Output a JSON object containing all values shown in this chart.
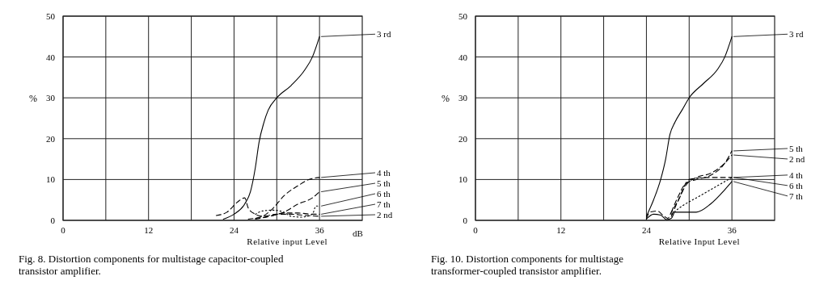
{
  "chart_data": [
    {
      "type": "line",
      "title": "Fig. 8. Distortion components for multistage capacitor-coupled transistor amplifier.",
      "xlabel": "Relative input Level",
      "ylabel": "%",
      "annotations": [
        "dB"
      ],
      "xlim": [
        0,
        42
      ],
      "xticks": [
        0,
        {
          "value": 6,
          "label": null
        },
        12,
        {
          "value": 18,
          "label": null
        },
        24,
        {
          "value": 30,
          "label": null
        },
        36
      ],
      "ylim": [
        0,
        50
      ],
      "yticks": [
        0,
        10,
        20,
        30,
        40,
        50
      ],
      "grid": true,
      "marker": "none",
      "series": [
        {
          "name": "3 rd",
          "color": "#000000",
          "line_style": "solid",
          "x": [
            22.5,
            24,
            25.5,
            26.3,
            27,
            27.5,
            28.2,
            28.8,
            30,
            32,
            34,
            35,
            36
          ],
          "values": [
            0.3,
            1.5,
            4,
            7,
            13,
            19,
            24,
            27,
            30,
            33,
            37,
            40,
            45
          ]
        },
        {
          "name": "2 nd",
          "color": "#000000",
          "line_style": "dashed",
          "x": [
            21.5,
            23,
            24.5,
            25.5,
            26,
            27,
            28,
            30,
            32,
            34,
            36
          ],
          "values": [
            1.2,
            2,
            4.5,
            5.5,
            3,
            1.5,
            1,
            1.5,
            1.5,
            1.2,
            1
          ]
        },
        {
          "name": "4 th",
          "color": "#000000",
          "line_style": "dashed",
          "x": [
            26,
            28,
            29.5,
            31,
            33,
            34.5,
            36
          ],
          "values": [
            0.3,
            1,
            3,
            6,
            8.5,
            10,
            10.5
          ]
        },
        {
          "name": "5 th",
          "color": "#000000",
          "line_style": "dashed",
          "x": [
            27,
            29,
            31,
            33,
            35,
            36
          ],
          "values": [
            0.3,
            1,
            2,
            4,
            5.5,
            7
          ]
        },
        {
          "name": "6 th",
          "color": "#000000",
          "line_style": "dotted",
          "x": [
            27,
            28,
            29.5,
            31,
            32,
            33.5,
            35,
            35.5,
            36
          ],
          "values": [
            1.5,
            2.3,
            2.5,
            2,
            1,
            0.8,
            1.5,
            3.5,
            3.5
          ]
        },
        {
          "name": "7 th",
          "color": "#000000",
          "line_style": "dashed",
          "x": [
            27,
            29,
            31,
            33,
            35,
            36
          ],
          "values": [
            0.5,
            1,
            1.8,
            1.8,
            1.5,
            1.5
          ]
        }
      ]
    },
    {
      "type": "line",
      "title": "Fig. 10. Distortion components for multistage transformer-coupled transistor amplifier.",
      "xlabel": "Relative Input Level",
      "ylabel": "%",
      "xlim": [
        0,
        42
      ],
      "xticks": [
        0,
        {
          "value": 6,
          "label": null
        },
        12,
        {
          "value": 18,
          "label": null
        },
        24,
        {
          "value": 30,
          "label": null
        },
        36
      ],
      "ylim": [
        0,
        50
      ],
      "yticks": [
        0,
        10,
        20,
        30,
        40,
        50
      ],
      "grid": true,
      "marker": "none",
      "series": [
        {
          "name": "3 rd",
          "color": "#000000",
          "line_style": "solid",
          "x": [
            24,
            25,
            26,
            26.7,
            27.3,
            28,
            29,
            30,
            32,
            34,
            35,
            36
          ],
          "values": [
            1,
            5,
            10,
            15,
            21,
            24,
            27,
            30,
            33.5,
            37,
            40,
            45
          ]
        },
        {
          "name": "5 th",
          "color": "#000000",
          "line_style": "dashed",
          "x": [
            27.5,
            28.5,
            29.5,
            31,
            33,
            35,
            36
          ],
          "values": [
            2,
            6,
            9,
            10,
            11,
            14,
            17
          ]
        },
        {
          "name": "2 nd",
          "color": "#000000",
          "line_style": "dashed",
          "x": [
            24,
            24.5,
            25.5,
            26.5,
            27,
            27.5,
            28.5,
            29.5,
            31,
            33,
            35,
            36
          ],
          "values": [
            0.5,
            2,
            2.3,
            1,
            0.5,
            2,
            5,
            8.5,
            10.5,
            11.5,
            14,
            16
          ]
        },
        {
          "name": "4 th",
          "color": "#000000",
          "line_style": "dashed",
          "x": [
            27.5,
            28.5,
            30,
            32,
            34,
            36
          ],
          "values": [
            1,
            5,
            10,
            10.5,
            10.5,
            10.5
          ]
        },
        {
          "name": "6 th",
          "color": "#000000",
          "line_style": "dotted",
          "x": [
            27.5,
            29,
            31,
            33,
            35,
            36
          ],
          "values": [
            1.5,
            3.5,
            5.5,
            7.5,
            9.5,
            10.5
          ]
        },
        {
          "name": "7 th",
          "color": "#000000",
          "line_style": "solid",
          "x": [
            24,
            25,
            26,
            26.8,
            27.5,
            28,
            29,
            31,
            33,
            35,
            36
          ],
          "values": [
            0.3,
            1.5,
            1.3,
            0.2,
            0.5,
            2,
            2,
            2,
            4,
            7.5,
            9.5
          ]
        }
      ]
    }
  ]
}
